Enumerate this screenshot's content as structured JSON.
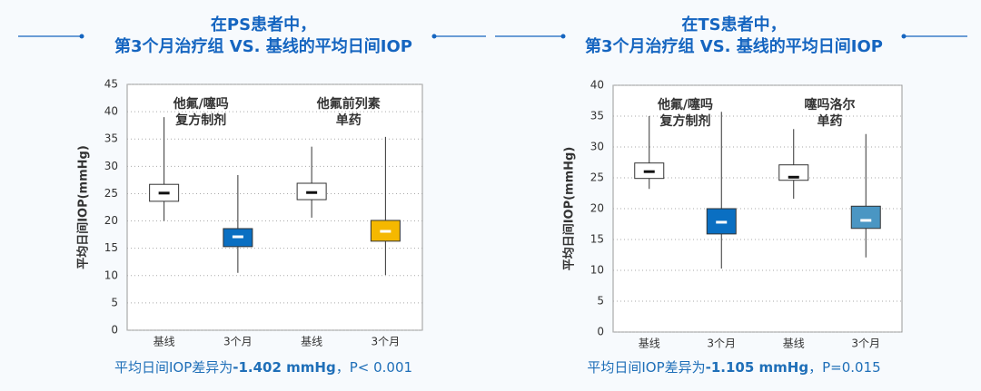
{
  "chart_data": [
    {
      "type": "box",
      "title": [
        "在PS患者中，",
        "第3个月治疗组 VS. 基线的平均日间IOP"
      ],
      "y_label": "平均日间IOP(mmHg)",
      "categories": [
        "基线",
        "3个月",
        "基线",
        "3个月"
      ],
      "boxes": [
        {
          "min": 20,
          "q1": 23.6,
          "median": 25.1,
          "q3": 26.7,
          "max": 39,
          "color": "#ffffff",
          "median_color": "#111111"
        },
        {
          "min": 10.5,
          "q1": 15.3,
          "median": 17.1,
          "q3": 18.6,
          "max": 28.4,
          "color": "#0a6fc2",
          "median_color": "#ffffff"
        },
        {
          "min": 20.6,
          "q1": 23.9,
          "median": 25.2,
          "q3": 26.9,
          "max": 33.6,
          "color": "#ffffff",
          "median_color": "#111111"
        },
        {
          "min": 10.1,
          "q1": 16.3,
          "median": 18.1,
          "q3": 20.1,
          "max": 35.4,
          "color": "#f5b800",
          "median_color": "#ffffff"
        }
      ],
      "annotations": [
        [
          "他氟/噻吗",
          "复方制剂"
        ],
        [
          "他氟前列素",
          "单药"
        ]
      ],
      "ylim": [
        0,
        45
      ],
      "yticks": [
        0,
        5,
        10,
        15,
        20,
        25,
        30,
        35,
        40,
        45
      ],
      "grid": true,
      "note": [
        "平均日间IOP差异为",
        "-1.402 mmHg",
        "，P< 0.001"
      ]
    },
    {
      "type": "box",
      "title": [
        "在TS患者中，",
        "第3个月治疗组 VS. 基线的平均日间IOP"
      ],
      "y_label": "平均日间IOP(mmHg)",
      "categories": [
        "基线",
        "3个月",
        "基线",
        "3个月"
      ],
      "boxes": [
        {
          "min": 23.2,
          "q1": 24.9,
          "median": 26,
          "q3": 27.4,
          "max": 35,
          "color": "#ffffff",
          "median_color": "#111111"
        },
        {
          "min": 10.3,
          "q1": 15.9,
          "median": 17.8,
          "q3": 20,
          "max": 35.7,
          "color": "#0a6fc2",
          "median_color": "#ffffff"
        },
        {
          "min": 21.6,
          "q1": 24.6,
          "median": 25.1,
          "q3": 27.1,
          "max": 32.9,
          "color": "#ffffff",
          "median_color": "#111111"
        },
        {
          "min": 12.1,
          "q1": 16.8,
          "median": 18.1,
          "q3": 20.4,
          "max": 32.1,
          "color": "#4a96c3",
          "median_color": "#ffffff"
        }
      ],
      "annotations": [
        [
          "他氟/噻吗",
          "复方制剂"
        ],
        [
          "噻吗洛尔",
          "单药"
        ]
      ],
      "ylim": [
        0,
        40
      ],
      "yticks": [
        0,
        5,
        10,
        15,
        20,
        25,
        30,
        35,
        40
      ],
      "grid": true,
      "note": [
        "平均日间IOP差异为",
        "-1.105 mmHg",
        "，P=0.015"
      ]
    }
  ]
}
